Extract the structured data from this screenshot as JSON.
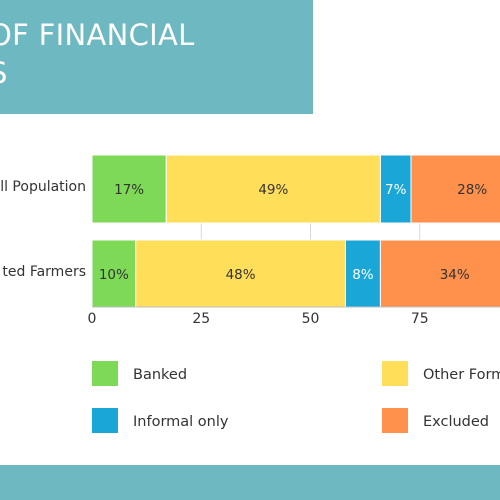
{
  "title": "OF FINANCIAL\nS",
  "chart_data": {
    "type": "bar",
    "orientation": "horizontal",
    "stacked": true,
    "categories": [
      "ll Population",
      "ted Farmers"
    ],
    "series": [
      {
        "name": "Banked",
        "color": "#7ed957",
        "values": [
          17,
          10
        ],
        "labels": [
          "17%",
          "10%"
        ],
        "label_color": "#333333"
      },
      {
        "name": "Other Form",
        "color": "#ffde59",
        "values": [
          49,
          48
        ],
        "labels": [
          "49%",
          "48%"
        ],
        "label_color": "#333333"
      },
      {
        "name": "Informal only",
        "color": "#1aa7d8",
        "values": [
          7,
          8
        ],
        "labels": [
          "7%",
          "8%"
        ],
        "label_color": "#ffffff"
      },
      {
        "name": "Excluded",
        "color": "#ff914d",
        "values": [
          28,
          34
        ],
        "labels": [
          "28%",
          "34%"
        ],
        "label_color": "#333333"
      }
    ],
    "xlim": [
      0,
      100
    ],
    "xticks": [
      0,
      25,
      50,
      75
    ],
    "grid": true,
    "legend_position": "bottom"
  }
}
